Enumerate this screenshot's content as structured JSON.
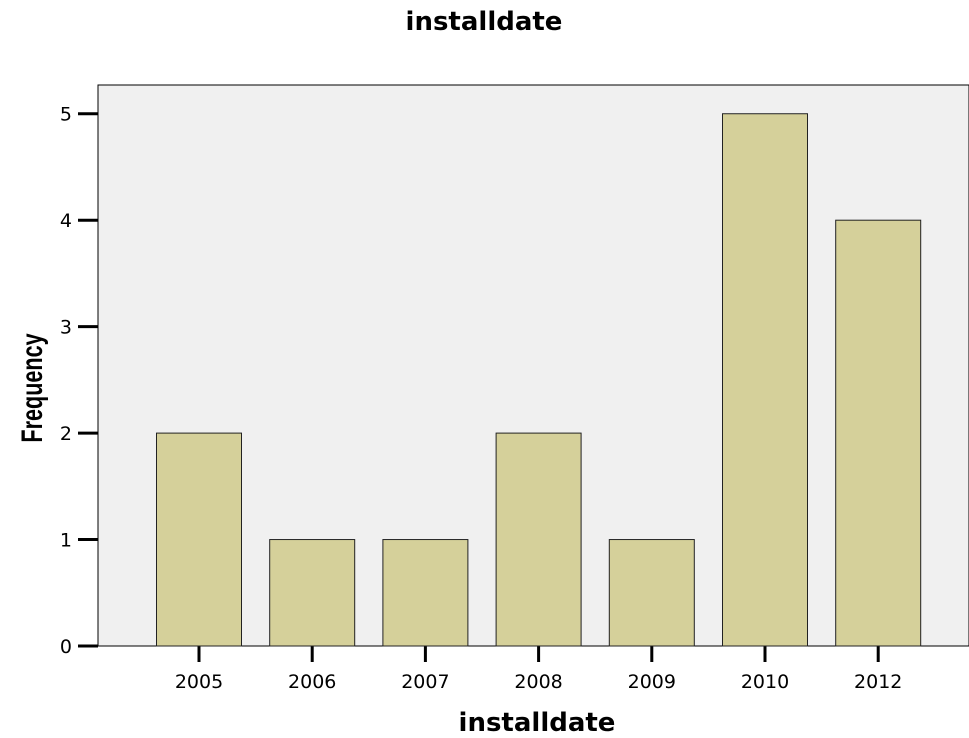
{
  "chart_data": {
    "type": "bar",
    "title": "installdate",
    "xlabel": "installdate",
    "ylabel": "Frequency",
    "categories": [
      "2005",
      "2006",
      "2007",
      "2008",
      "2009",
      "2010",
      "2012"
    ],
    "values": [
      2,
      1,
      1,
      2,
      1,
      5,
      4
    ],
    "yticks": [
      "0",
      "1",
      "2",
      "3",
      "4",
      "5"
    ],
    "ylim": [
      0,
      5.27
    ],
    "grid": false,
    "colors": {
      "bar_fill": "#d5d09a",
      "bar_stroke": "#222222",
      "plot_background": "#f0f0f0"
    }
  }
}
